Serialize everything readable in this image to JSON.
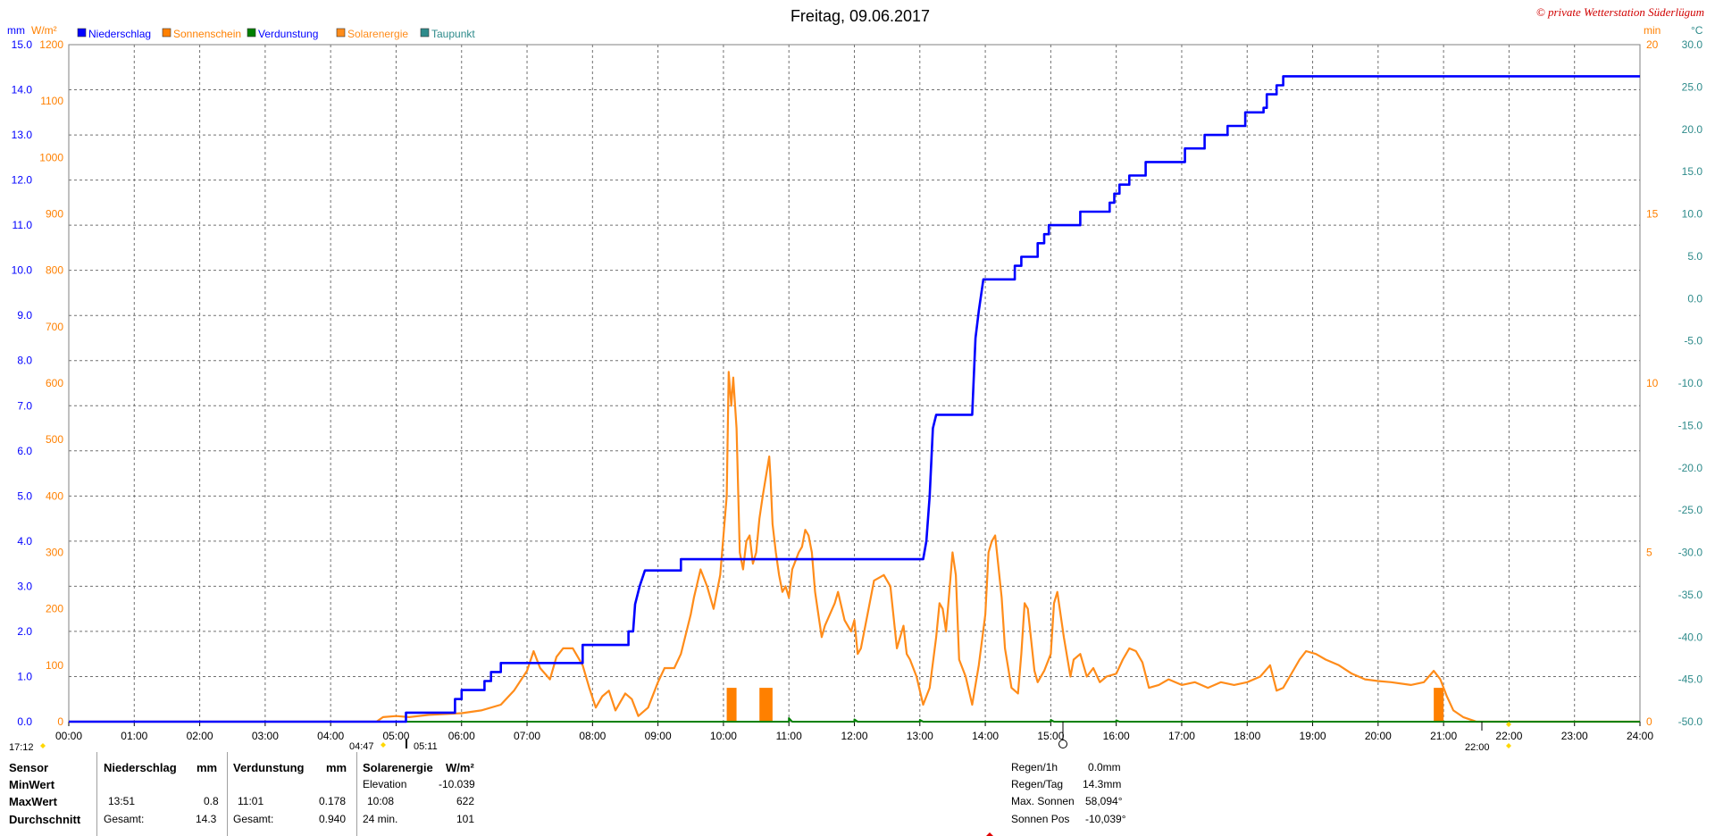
{
  "title": "Freitag, 09.06.2017",
  "copyright": "© private Wetterstation Süderlügum",
  "axis_units": {
    "left_mm": "mm",
    "left_wm2": "W/m²",
    "right_min": "min",
    "right_c": "°C"
  },
  "colors": {
    "niederschlag": "#0000ff",
    "sonnenschein": "#ff8000",
    "verdunstung": "#008000",
    "solarenergie": "#ff8c1a",
    "taupunkt": "#2e8b8b",
    "axis_mm": "#0000ff",
    "axis_wm2": "#ff8000",
    "axis_c": "#2e8b8b",
    "copyright": "#d00000"
  },
  "chart_data": {
    "type": "line",
    "x_label_ticks": [
      "00:00",
      "01:00",
      "02:00",
      "03:00",
      "04:00",
      "05:00",
      "06:00",
      "07:00",
      "08:00",
      "09:00",
      "10:00",
      "11:00",
      "12:00",
      "13:00",
      "14:00",
      "15:00",
      "16:00",
      "17:00",
      "18:00",
      "19:00",
      "20:00",
      "21:00",
      "22:00",
      "23:00",
      "24:00"
    ],
    "x_range_hours": [
      0,
      24
    ],
    "y_left_mm": {
      "range": [
        0,
        15
      ],
      "ticks": [
        "0.0",
        "1.0",
        "2.0",
        "3.0",
        "4.0",
        "5.0",
        "6.0",
        "7.0",
        "8.0",
        "9.0",
        "10.0",
        "11.0",
        "12.0",
        "13.0",
        "14.0",
        "15.0"
      ]
    },
    "y_left_wm2": {
      "range": [
        0,
        1200
      ],
      "ticks": [
        "0",
        "100",
        "200",
        "300",
        "400",
        "500",
        "600",
        "700",
        "800",
        "900",
        "1000",
        "1100",
        "1200"
      ]
    },
    "y_right_min": {
      "range": [
        0,
        20
      ],
      "ticks": [
        "0",
        "5",
        "10",
        "15",
        "20"
      ]
    },
    "y_right_c": {
      "range": [
        -50,
        30
      ],
      "ticks": [
        "-50.0",
        "-45.0",
        "-40.0",
        "-35.0",
        "-30.0",
        "-25.0",
        "-20.0",
        "-15.0",
        "-10.0",
        "-5.0",
        "0.0",
        "5.0",
        "10.0",
        "15.0",
        "20.0",
        "25.0",
        "30.0"
      ]
    },
    "grid": true,
    "legend_position": "top-left",
    "series": [
      {
        "name": "Niederschlag",
        "unit": "mm",
        "axis": "left_mm",
        "step": true,
        "points": [
          [
            0,
            0
          ],
          [
            5.15,
            0
          ],
          [
            5.15,
            0.2
          ],
          [
            5.9,
            0.2
          ],
          [
            5.9,
            0.5
          ],
          [
            6.0,
            0.5
          ],
          [
            6.0,
            0.7
          ],
          [
            6.35,
            0.7
          ],
          [
            6.35,
            0.9
          ],
          [
            6.45,
            0.9
          ],
          [
            6.45,
            1.1
          ],
          [
            6.6,
            1.1
          ],
          [
            6.6,
            1.3
          ],
          [
            7.85,
            1.3
          ],
          [
            7.85,
            1.7
          ],
          [
            8.55,
            1.7
          ],
          [
            8.55,
            2.0
          ],
          [
            8.62,
            2.0
          ],
          [
            8.65,
            2.6
          ],
          [
            8.72,
            3.0
          ],
          [
            8.8,
            3.35
          ],
          [
            9.35,
            3.35
          ],
          [
            9.35,
            3.6
          ],
          [
            13.05,
            3.6
          ],
          [
            13.1,
            4.0
          ],
          [
            13.15,
            5.0
          ],
          [
            13.2,
            6.5
          ],
          [
            13.25,
            6.8
          ],
          [
            13.8,
            6.8
          ],
          [
            13.82,
            7.5
          ],
          [
            13.85,
            8.5
          ],
          [
            13.9,
            9.1
          ],
          [
            13.97,
            9.8
          ],
          [
            14.45,
            9.8
          ],
          [
            14.45,
            10.1
          ],
          [
            14.55,
            10.1
          ],
          [
            14.55,
            10.3
          ],
          [
            14.8,
            10.3
          ],
          [
            14.8,
            10.6
          ],
          [
            14.9,
            10.6
          ],
          [
            14.9,
            10.8
          ],
          [
            14.97,
            10.8
          ],
          [
            14.97,
            11.0
          ],
          [
            15.45,
            11.0
          ],
          [
            15.45,
            11.3
          ],
          [
            15.9,
            11.3
          ],
          [
            15.9,
            11.5
          ],
          [
            15.97,
            11.5
          ],
          [
            15.97,
            11.7
          ],
          [
            16.05,
            11.7
          ],
          [
            16.05,
            11.9
          ],
          [
            16.2,
            11.9
          ],
          [
            16.2,
            12.1
          ],
          [
            16.45,
            12.1
          ],
          [
            16.45,
            12.4
          ],
          [
            17.05,
            12.4
          ],
          [
            17.05,
            12.7
          ],
          [
            17.35,
            12.7
          ],
          [
            17.35,
            13.0
          ],
          [
            17.7,
            13.0
          ],
          [
            17.7,
            13.2
          ],
          [
            17.97,
            13.2
          ],
          [
            17.97,
            13.5
          ],
          [
            18.25,
            13.5
          ],
          [
            18.25,
            13.6
          ],
          [
            18.3,
            13.6
          ],
          [
            18.3,
            13.9
          ],
          [
            18.45,
            13.9
          ],
          [
            18.45,
            14.1
          ],
          [
            18.55,
            14.1
          ],
          [
            18.55,
            14.3
          ],
          [
            24,
            14.3
          ]
        ]
      },
      {
        "name": "Sonnenschein",
        "unit": "min",
        "axis": "right_min",
        "bars": [
          [
            10.05,
            10.2,
            1.0
          ],
          [
            10.55,
            10.75,
            1.0
          ],
          [
            20.85,
            21.0,
            1.0
          ]
        ]
      },
      {
        "name": "Verdunstung",
        "unit": "mm",
        "axis": "left_mm",
        "points": [
          [
            0,
            0
          ],
          [
            11.0,
            0
          ],
          [
            11.0,
            0.08
          ],
          [
            11.05,
            0
          ],
          [
            12.0,
            0
          ],
          [
            12.0,
            0.05
          ],
          [
            12.05,
            0
          ],
          [
            13.0,
            0
          ],
          [
            13.0,
            0.04
          ],
          [
            13.05,
            0
          ],
          [
            15.0,
            0
          ],
          [
            15.0,
            0.04
          ],
          [
            15.05,
            0
          ],
          [
            16.0,
            0
          ],
          [
            16.0,
            0.03
          ],
          [
            16.05,
            0
          ],
          [
            24,
            0
          ]
        ]
      },
      {
        "name": "Solarenergie",
        "unit": "W/m²",
        "axis": "left_wm2",
        "points": [
          [
            0,
            0
          ],
          [
            4.7,
            0
          ],
          [
            4.8,
            8
          ],
          [
            5.0,
            10
          ],
          [
            5.2,
            8
          ],
          [
            5.5,
            12
          ],
          [
            6.0,
            15
          ],
          [
            6.3,
            20
          ],
          [
            6.6,
            30
          ],
          [
            6.8,
            55
          ],
          [
            7.0,
            90
          ],
          [
            7.1,
            125
          ],
          [
            7.2,
            95
          ],
          [
            7.35,
            75
          ],
          [
            7.45,
            115
          ],
          [
            7.55,
            130
          ],
          [
            7.7,
            130
          ],
          [
            7.85,
            100
          ],
          [
            7.95,
            60
          ],
          [
            8.05,
            25
          ],
          [
            8.15,
            45
          ],
          [
            8.25,
            55
          ],
          [
            8.35,
            20
          ],
          [
            8.5,
            50
          ],
          [
            8.6,
            40
          ],
          [
            8.7,
            10
          ],
          [
            8.85,
            25
          ],
          [
            9.0,
            70
          ],
          [
            9.1,
            95
          ],
          [
            9.25,
            95
          ],
          [
            9.35,
            120
          ],
          [
            9.5,
            190
          ],
          [
            9.55,
            220
          ],
          [
            9.65,
            270
          ],
          [
            9.75,
            240
          ],
          [
            9.85,
            200
          ],
          [
            9.95,
            260
          ],
          [
            10.05,
            400
          ],
          [
            10.08,
            620
          ],
          [
            10.12,
            560
          ],
          [
            10.15,
            610
          ],
          [
            10.2,
            520
          ],
          [
            10.25,
            300
          ],
          [
            10.3,
            270
          ],
          [
            10.35,
            320
          ],
          [
            10.4,
            330
          ],
          [
            10.45,
            280
          ],
          [
            10.5,
            300
          ],
          [
            10.55,
            360
          ],
          [
            10.6,
            400
          ],
          [
            10.7,
            470
          ],
          [
            10.72,
            430
          ],
          [
            10.75,
            350
          ],
          [
            10.8,
            300
          ],
          [
            10.85,
            260
          ],
          [
            10.9,
            230
          ],
          [
            10.95,
            240
          ],
          [
            11.0,
            220
          ],
          [
            11.05,
            270
          ],
          [
            11.15,
            300
          ],
          [
            11.2,
            310
          ],
          [
            11.25,
            340
          ],
          [
            11.3,
            330
          ],
          [
            11.35,
            300
          ],
          [
            11.4,
            230
          ],
          [
            11.5,
            150
          ],
          [
            11.55,
            170
          ],
          [
            11.7,
            210
          ],
          [
            11.75,
            230
          ],
          [
            11.85,
            180
          ],
          [
            11.95,
            160
          ],
          [
            12.0,
            180
          ],
          [
            12.05,
            120
          ],
          [
            12.1,
            130
          ],
          [
            12.2,
            190
          ],
          [
            12.3,
            250
          ],
          [
            12.45,
            260
          ],
          [
            12.55,
            240
          ],
          [
            12.65,
            130
          ],
          [
            12.75,
            170
          ],
          [
            12.8,
            120
          ],
          [
            12.85,
            110
          ],
          [
            12.95,
            80
          ],
          [
            13.05,
            30
          ],
          [
            13.15,
            60
          ],
          [
            13.25,
            150
          ],
          [
            13.3,
            210
          ],
          [
            13.35,
            200
          ],
          [
            13.4,
            160
          ],
          [
            13.45,
            230
          ],
          [
            13.5,
            300
          ],
          [
            13.55,
            260
          ],
          [
            13.6,
            110
          ],
          [
            13.7,
            80
          ],
          [
            13.8,
            30
          ],
          [
            13.9,
            100
          ],
          [
            14.0,
            190
          ],
          [
            14.05,
            300
          ],
          [
            14.1,
            320
          ],
          [
            14.15,
            330
          ],
          [
            14.25,
            220
          ],
          [
            14.3,
            130
          ],
          [
            14.4,
            60
          ],
          [
            14.5,
            50
          ],
          [
            14.55,
            120
          ],
          [
            14.6,
            210
          ],
          [
            14.65,
            200
          ],
          [
            14.75,
            90
          ],
          [
            14.8,
            70
          ],
          [
            14.9,
            90
          ],
          [
            15.0,
            120
          ],
          [
            15.05,
            210
          ],
          [
            15.1,
            230
          ],
          [
            15.2,
            150
          ],
          [
            15.3,
            80
          ],
          [
            15.35,
            110
          ],
          [
            15.45,
            120
          ],
          [
            15.55,
            80
          ],
          [
            15.65,
            95
          ],
          [
            15.75,
            70
          ],
          [
            15.85,
            80
          ],
          [
            16.0,
            85
          ],
          [
            16.1,
            110
          ],
          [
            16.2,
            130
          ],
          [
            16.3,
            125
          ],
          [
            16.4,
            105
          ],
          [
            16.5,
            60
          ],
          [
            16.65,
            65
          ],
          [
            16.8,
            75
          ],
          [
            17.0,
            65
          ],
          [
            17.2,
            70
          ],
          [
            17.4,
            60
          ],
          [
            17.6,
            70
          ],
          [
            17.8,
            65
          ],
          [
            18.0,
            70
          ],
          [
            18.2,
            80
          ],
          [
            18.35,
            100
          ],
          [
            18.45,
            55
          ],
          [
            18.55,
            60
          ],
          [
            18.65,
            80
          ],
          [
            18.8,
            110
          ],
          [
            18.9,
            125
          ],
          [
            19.05,
            120
          ],
          [
            19.2,
            110
          ],
          [
            19.4,
            100
          ],
          [
            19.6,
            85
          ],
          [
            19.8,
            75
          ],
          [
            20.0,
            72
          ],
          [
            20.2,
            70
          ],
          [
            20.5,
            65
          ],
          [
            20.7,
            70
          ],
          [
            20.85,
            90
          ],
          [
            20.95,
            75
          ],
          [
            21.05,
            45
          ],
          [
            21.15,
            20
          ],
          [
            21.3,
            8
          ],
          [
            21.5,
            0
          ],
          [
            24,
            0
          ]
        ]
      },
      {
        "name": "Taupunkt",
        "unit": "°C",
        "axis": "right_c",
        "points": []
      }
    ],
    "markers": {
      "sunrise": "04:47",
      "rise_line": "05:11",
      "sunset": "22:00",
      "left_bottom": "17:12"
    }
  },
  "stats": {
    "header": {
      "sensor": "Sensor",
      "niederschlag": "Niederschlag",
      "mm1": "mm",
      "verdunstung": "Verdunstung",
      "mm2": "mm",
      "solarenergie": "Solarenergie",
      "unit_solar": "W/m²"
    },
    "min": {
      "label": "MinWert",
      "solar_label": "Elevation",
      "solar_value": "-10.039"
    },
    "max": {
      "label": "MaxWert",
      "n_time": "13:51",
      "n_value": "0.8",
      "v_time": "11:01",
      "v_value": "0.178",
      "s_time": "10:08",
      "s_value": "622"
    },
    "avg": {
      "label": "Durchschnitt",
      "n_label": "Gesamt:",
      "n_value": "14.3",
      "v_label": "Gesamt:",
      "v_value": "0.940",
      "s_label": "24 min.",
      "s_value": "101"
    },
    "right": [
      {
        "label": "Regen/1h",
        "value": "0.0mm"
      },
      {
        "label": "Regen/Tag",
        "value": "14.3mm"
      },
      {
        "label": "Max. Sonnen",
        "value": "58,094°"
      },
      {
        "label": "Sonnen Pos",
        "value": "-10,039°"
      }
    ]
  }
}
